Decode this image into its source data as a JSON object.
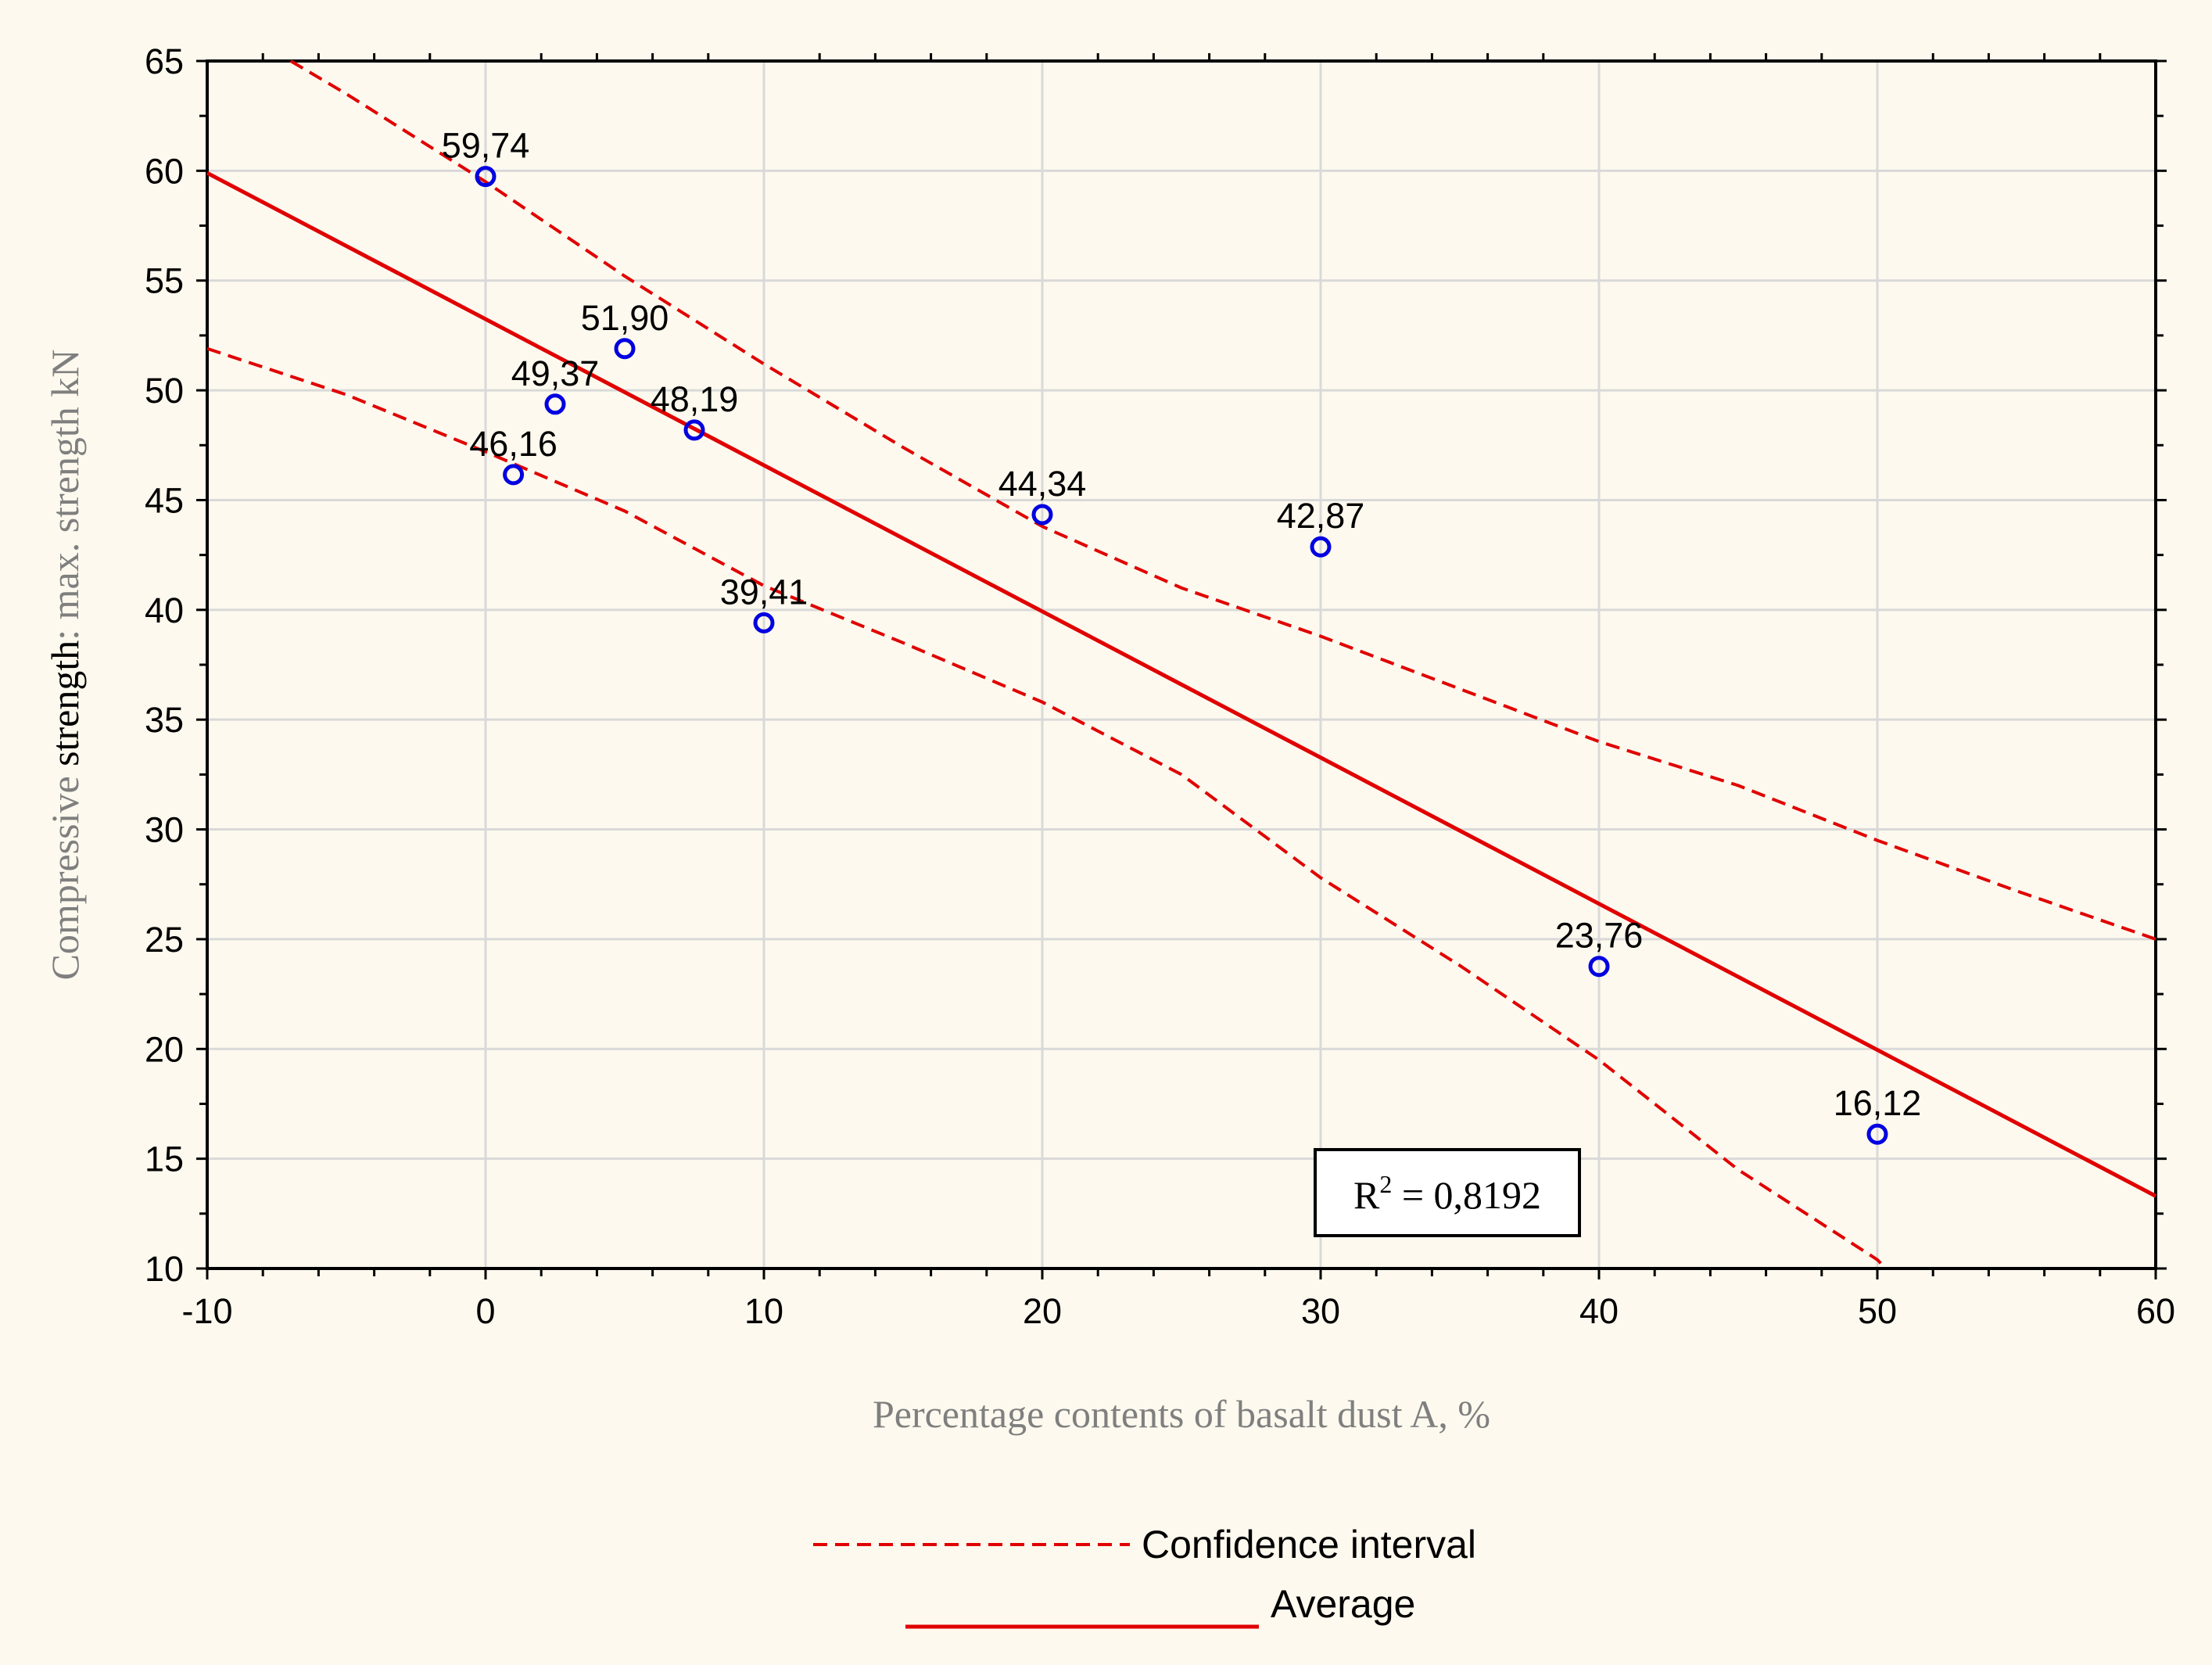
{
  "chart_data": {
    "type": "scatter",
    "title": "",
    "xlabel": "Percentage contents of basalt dust A, %",
    "ylabel": {
      "part1": "Compressive ",
      "part2": "strength",
      "part3": ": max. strength kN"
    },
    "xlim": [
      -10,
      60
    ],
    "ylim": [
      10,
      65
    ],
    "xticks": [
      -10,
      0,
      10,
      20,
      30,
      40,
      50,
      60
    ],
    "yticks": [
      10,
      15,
      20,
      25,
      30,
      35,
      40,
      45,
      50,
      55,
      60,
      65
    ],
    "grid": true,
    "points": [
      {
        "x": 0,
        "y": 59.74,
        "label": "59,74"
      },
      {
        "x": 1,
        "y": 46.16,
        "label": "46,16"
      },
      {
        "x": 2.5,
        "y": 49.37,
        "label": "49,37"
      },
      {
        "x": 5,
        "y": 51.9,
        "label": "51,90"
      },
      {
        "x": 7.5,
        "y": 48.19,
        "label": "48,19"
      },
      {
        "x": 10,
        "y": 39.41,
        "label": "39,41"
      },
      {
        "x": 20,
        "y": 44.34,
        "label": "44,34"
      },
      {
        "x": 30,
        "y": 42.87,
        "label": "42,87"
      },
      {
        "x": 40,
        "y": 23.76,
        "label": "23,76"
      },
      {
        "x": 50,
        "y": 16.12,
        "label": "16,12"
      }
    ],
    "fit_line": {
      "name": "Average",
      "x": [
        -10,
        60
      ],
      "y": [
        59.9,
        13.3
      ]
    },
    "confidence_upper": {
      "x": [
        -7,
        -5,
        0,
        5,
        10,
        15,
        20,
        25,
        30,
        35,
        40,
        45,
        50,
        55,
        60
      ],
      "y": [
        65,
        63.5,
        59.5,
        55.2,
        51.2,
        47.4,
        43.8,
        41,
        38.8,
        36.4,
        34,
        32,
        29.5,
        27.2,
        25
      ]
    },
    "confidence_lower": {
      "x": [
        -10,
        -5,
        0,
        5,
        10,
        15,
        20,
        25,
        30,
        35,
        40,
        45,
        50,
        50.3
      ],
      "y": [
        51.9,
        49.8,
        47.2,
        44.5,
        41.1,
        38.5,
        35.8,
        32.5,
        27.8,
        23.8,
        19.5,
        14.5,
        10.4,
        10
      ]
    },
    "r_squared": {
      "prefix": "R",
      "sup": "2",
      "value": " = 0,8192"
    },
    "legend": [
      {
        "label": "Confidence interval",
        "style": "dashed"
      },
      {
        "label": "Average",
        "style": "solid"
      }
    ],
    "colors": {
      "line": "#e00000",
      "marker": "#0000e0",
      "grid": "#d9d9d9"
    }
  }
}
